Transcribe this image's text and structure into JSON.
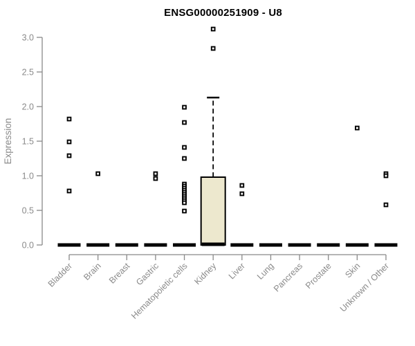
{
  "chart_data": {
    "type": "boxplot",
    "title": "ENSG00000251909 - U8",
    "ylabel": "Expression",
    "xlabel": "",
    "ylim": [
      0,
      3.15
    ],
    "grid": false,
    "legend": null,
    "ytick_values": [
      0,
      0.5,
      1,
      1.5,
      2,
      2.5,
      3
    ],
    "ytick_labels": [
      "0.0",
      "0.5",
      "1.0",
      "1.5",
      "2.0",
      "2.5",
      "3.0"
    ],
    "categories": [
      "Bladder",
      "Brain",
      "Breast",
      "Gastric",
      "Hematopoietic cells",
      "Kidney",
      "Liver",
      "Lung",
      "Pancreas",
      "Prostate",
      "Skin",
      "Unknown / Other"
    ],
    "boxes": [
      {
        "category": "Bladder",
        "q1": 0,
        "median": 0,
        "q3": 0,
        "whisker_low": 0,
        "whisker_high": 0,
        "outliers": [
          1.82,
          1.49,
          1.29,
          0.78
        ]
      },
      {
        "category": "Brain",
        "q1": 0,
        "median": 0,
        "q3": 0,
        "whisker_low": 0,
        "whisker_high": 0,
        "outliers": [
          1.03
        ]
      },
      {
        "category": "Breast",
        "q1": 0,
        "median": 0,
        "q3": 0,
        "whisker_low": 0,
        "whisker_high": 0,
        "outliers": []
      },
      {
        "category": "Gastric",
        "q1": 0,
        "median": 0,
        "q3": 0,
        "whisker_low": 0,
        "whisker_high": 0,
        "outliers": [
          1.03,
          0.96
        ]
      },
      {
        "category": "Hematopoietic cells",
        "q1": 0,
        "median": 0,
        "q3": 0,
        "whisker_low": 0,
        "whisker_high": 0,
        "outliers": [
          1.99,
          1.77,
          1.41,
          1.25,
          0.88,
          0.85,
          0.82,
          0.79,
          0.76,
          0.73,
          0.7,
          0.67,
          0.64,
          0.61,
          0.49
        ]
      },
      {
        "category": "Kidney",
        "q1": 0,
        "median": 0.01,
        "q3": 0.98,
        "whisker_low": 0,
        "whisker_high": 2.13,
        "outliers": [
          3.12,
          2.84
        ]
      },
      {
        "category": "Liver",
        "q1": 0,
        "median": 0,
        "q3": 0,
        "whisker_low": 0,
        "whisker_high": 0,
        "outliers": [
          0.86,
          0.74
        ]
      },
      {
        "category": "Lung",
        "q1": 0,
        "median": 0,
        "q3": 0,
        "whisker_low": 0,
        "whisker_high": 0,
        "outliers": []
      },
      {
        "category": "Pancreas",
        "q1": 0,
        "median": 0,
        "q3": 0,
        "whisker_low": 0,
        "whisker_high": 0,
        "outliers": []
      },
      {
        "category": "Prostate",
        "q1": 0,
        "median": 0,
        "q3": 0,
        "whisker_low": 0,
        "whisker_high": 0,
        "outliers": []
      },
      {
        "category": "Skin",
        "q1": 0,
        "median": 0,
        "q3": 0,
        "whisker_low": 0,
        "whisker_high": 0,
        "outliers": [
          1.69
        ]
      },
      {
        "category": "Unknown / Other",
        "q1": 0,
        "median": 0,
        "q3": 0,
        "whisker_low": 0,
        "whisker_high": 0,
        "outliers": [
          1.03,
          1.0,
          0.58
        ]
      }
    ],
    "colors": {
      "box_fill": "#ede8ce",
      "box_border": "#000000",
      "median": "#000000",
      "outlier": "#000000",
      "axis": "#898989",
      "tick_label": "#8a8a8a",
      "title": "#000000"
    }
  }
}
